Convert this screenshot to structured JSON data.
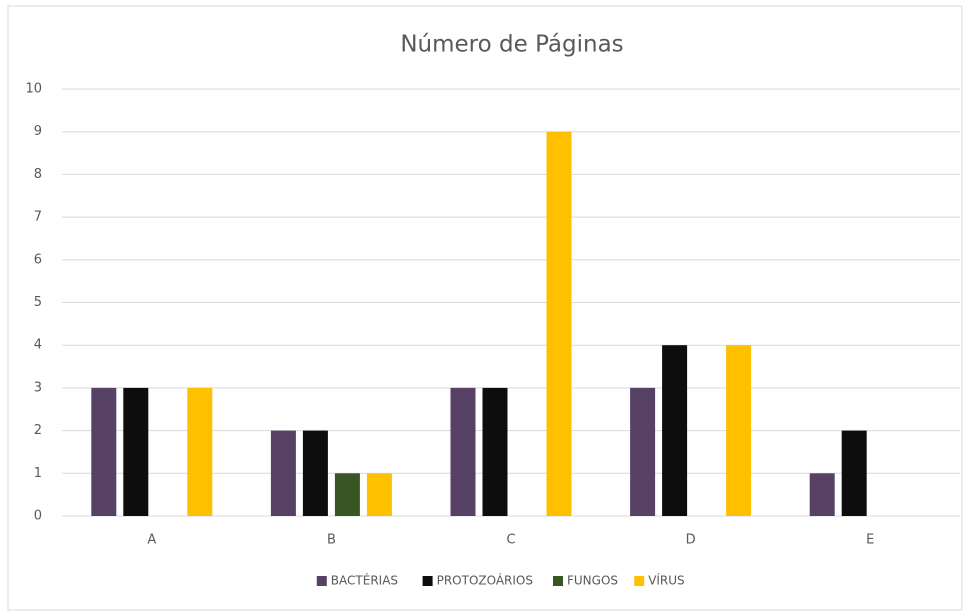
{
  "chart_data": {
    "type": "bar",
    "title": "Número de Páginas",
    "categories": [
      "A",
      "B",
      "C",
      "D",
      "E"
    ],
    "series": [
      {
        "name": "BACTÉRIAS",
        "color": "#574266",
        "values": [
          3,
          2,
          3,
          3,
          1
        ]
      },
      {
        "name": "PROTOZOÁRIOS",
        "color": "#0d0d0d",
        "values": [
          3,
          2,
          3,
          4,
          2
        ]
      },
      {
        "name": "FUNGOS",
        "color": "#375623",
        "values": [
          0,
          1,
          0,
          0,
          0
        ]
      },
      {
        "name": "VÍRUS",
        "color": "#ffc000",
        "values": [
          3,
          1,
          9,
          4,
          0
        ]
      }
    ],
    "ylim": [
      0,
      10
    ],
    "yticks": [
      0,
      1,
      2,
      3,
      4,
      5,
      6,
      7,
      8,
      9,
      10
    ],
    "grid": true,
    "legend": "bottom"
  }
}
